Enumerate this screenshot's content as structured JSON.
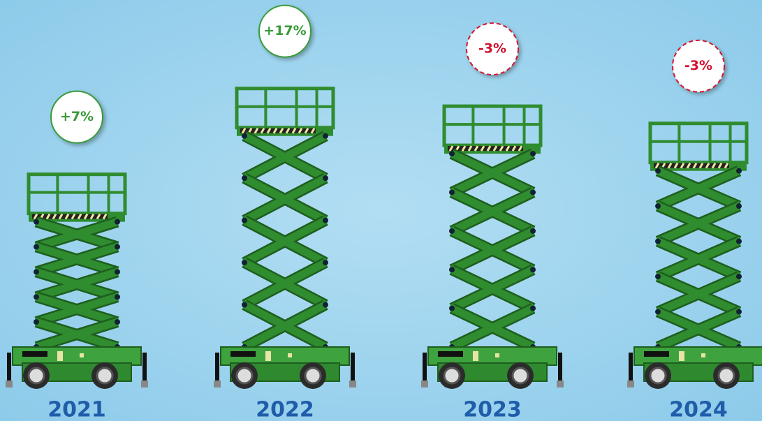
{
  "chart_data": {
    "type": "lift",
    "categories": [
      "2021",
      "2022",
      "2023",
      "2024"
    ],
    "values": [
      7,
      17,
      -3,
      -3
    ],
    "value_labels": [
      "+7%",
      "+17%",
      "-3%",
      "-3%"
    ],
    "positive_color": "#3a9b3a",
    "negative_color": "#d3122f",
    "color": "#2f8c2f"
  }
}
